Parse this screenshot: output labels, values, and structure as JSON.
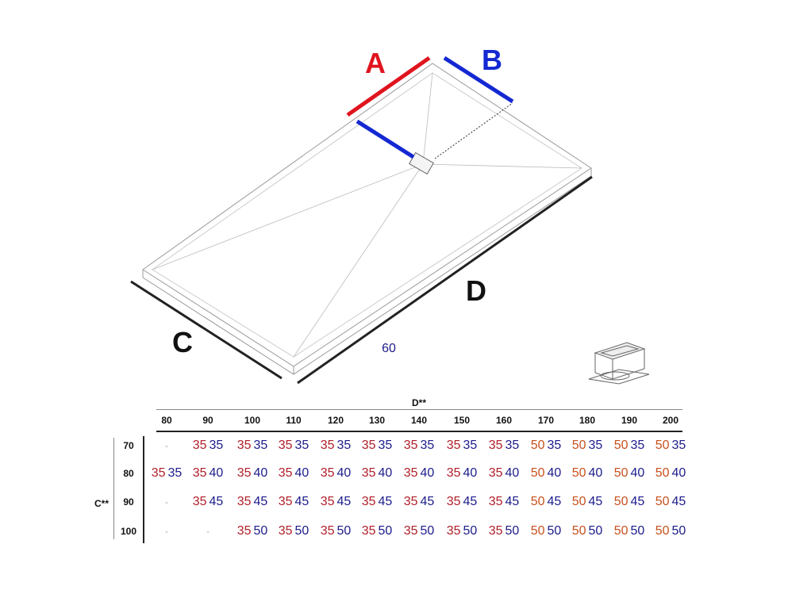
{
  "labels": {
    "a": "A",
    "b": "B",
    "c": "C",
    "d": "D",
    "dim": "60"
  },
  "colors": {
    "a": "#e0141e",
    "b": "#1428d2",
    "dim": "#1c1c8c",
    "red_value": "#b0202a",
    "orange_value": "#c8501e",
    "blue_value": "#1c1c8c"
  },
  "table": {
    "col_title": "D**",
    "row_title": "C**",
    "cols": [
      "80",
      "90",
      "100",
      "110",
      "120",
      "130",
      "140",
      "150",
      "160",
      "170",
      "180",
      "190",
      "200"
    ],
    "rows": [
      {
        "c": "70",
        "cells": [
          "-",
          "35 35",
          "35 35",
          "35 35",
          "35 35",
          "35 35",
          "35 35",
          "35 35",
          "35 35",
          "50 35",
          "50 35",
          "50 35",
          "50 35"
        ]
      },
      {
        "c": "80",
        "cells": [
          "35 35",
          "35 40",
          "35 40",
          "35 40",
          "35 40",
          "35 40",
          "35 40",
          "35 40",
          "35 40",
          "50 40",
          "50 40",
          "50 40",
          "50 40"
        ]
      },
      {
        "c": "90",
        "cells": [
          "-",
          "35 45",
          "35 45",
          "35 45",
          "35 45",
          "35 45",
          "35 45",
          "35 45",
          "35 45",
          "50 45",
          "50 45",
          "50 45",
          "50 45"
        ]
      },
      {
        "c": "100",
        "cells": [
          "-",
          "-",
          "35 50",
          "35 50",
          "35 50",
          "35 50",
          "35 50",
          "35 50",
          "35 50",
          "50 50",
          "50 50",
          "50 50",
          "50 50"
        ]
      }
    ]
  }
}
